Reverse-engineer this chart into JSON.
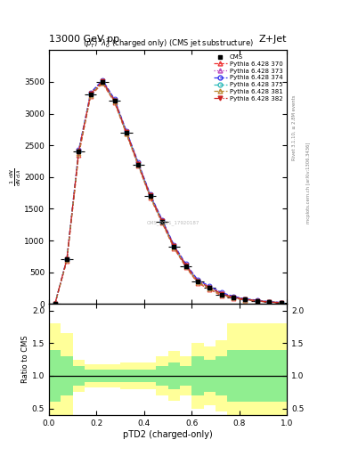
{
  "title_top": "13000 GeV pp",
  "title_right": "Z+Jet",
  "plot_title": "$(p_T^P)^2\\lambda_0^2$ (charged only) (CMS jet substructure)",
  "xlabel": "pTD2 (charged-only)",
  "watermark": "CMS_2021_17920187",
  "rivet_label": "Rivet 3.1.10, ≥ 2.8M events",
  "arxiv_label": "mcplots.cern.ch [arXiv:1306.3436]",
  "cms_label": "CMS",
  "x_bins": [
    0.0,
    0.05,
    0.1,
    0.15,
    0.2,
    0.25,
    0.3,
    0.35,
    0.4,
    0.45,
    0.5,
    0.55,
    0.6,
    0.65,
    0.7,
    0.75,
    0.8,
    0.85,
    0.9,
    0.95,
    1.0
  ],
  "cms_y": [
    0.0,
    700,
    2400,
    3300,
    3500,
    3200,
    2700,
    2200,
    1700,
    1300,
    900,
    600,
    350,
    250,
    150,
    100,
    70,
    50,
    30,
    20
  ],
  "pythia_lines": [
    {
      "label": "Pythia 6.428 370",
      "color": "#EE3333",
      "linestyle": "--",
      "marker": "^",
      "markerfacecolor": "none",
      "y": [
        0.0,
        680,
        2350,
        3280,
        3480,
        3180,
        2680,
        2180,
        1680,
        1280,
        880,
        580,
        330,
        230,
        130,
        90,
        60,
        45,
        28,
        18
      ]
    },
    {
      "label": "Pythia 6.428 373",
      "color": "#BB44BB",
      "linestyle": ":",
      "marker": "^",
      "markerfacecolor": "none",
      "y": [
        0.0,
        700,
        2420,
        3320,
        3520,
        3220,
        2720,
        2220,
        1720,
        1320,
        920,
        620,
        370,
        270,
        170,
        110,
        75,
        55,
        33,
        22
      ]
    },
    {
      "label": "Pythia 6.428 374",
      "color": "#3333EE",
      "linestyle": "--",
      "marker": "o",
      "markerfacecolor": "none",
      "y": [
        0.0,
        710,
        2430,
        3330,
        3530,
        3230,
        2730,
        2230,
        1730,
        1330,
        930,
        630,
        380,
        280,
        180,
        120,
        80,
        60,
        36,
        24
      ]
    },
    {
      "label": "Pythia 6.428 375",
      "color": "#33BBBB",
      "linestyle": "--",
      "marker": "o",
      "markerfacecolor": "none",
      "y": [
        0.0,
        700,
        2400,
        3300,
        3500,
        3200,
        2700,
        2200,
        1700,
        1300,
        900,
        600,
        350,
        250,
        150,
        100,
        70,
        50,
        30,
        20
      ]
    },
    {
      "label": "Pythia 6.428 381",
      "color": "#BB8833",
      "linestyle": "--",
      "marker": "^",
      "markerfacecolor": "none",
      "y": [
        0.0,
        690,
        2380,
        3290,
        3490,
        3190,
        2690,
        2190,
        1690,
        1290,
        890,
        590,
        340,
        240,
        140,
        95,
        65,
        48,
        29,
        19
      ]
    },
    {
      "label": "Pythia 6.428 382",
      "color": "#CC2222",
      "linestyle": "-.",
      "marker": "v",
      "markerfacecolor": "#CC2222",
      "y": [
        0.0,
        705,
        2410,
        3310,
        3510,
        3210,
        2710,
        2210,
        1710,
        1310,
        910,
        610,
        360,
        260,
        160,
        105,
        72,
        52,
        31,
        21
      ]
    }
  ],
  "ratio_green_upper": [
    1.4,
    1.3,
    1.15,
    1.1,
    1.1,
    1.1,
    1.1,
    1.1,
    1.1,
    1.15,
    1.2,
    1.15,
    1.3,
    1.25,
    1.3,
    1.4,
    1.4,
    1.4,
    1.4,
    1.4
  ],
  "ratio_green_lower": [
    0.6,
    0.7,
    0.85,
    0.9,
    0.9,
    0.9,
    0.9,
    0.9,
    0.9,
    0.85,
    0.8,
    0.85,
    0.7,
    0.75,
    0.7,
    0.6,
    0.6,
    0.6,
    0.6,
    0.6
  ],
  "ratio_yellow_upper": [
    1.8,
    1.65,
    1.25,
    1.18,
    1.18,
    1.18,
    1.2,
    1.2,
    1.2,
    1.3,
    1.38,
    1.3,
    1.5,
    1.45,
    1.55,
    1.8,
    1.8,
    1.8,
    1.8,
    1.8
  ],
  "ratio_yellow_lower": [
    0.2,
    0.35,
    0.75,
    0.82,
    0.82,
    0.82,
    0.8,
    0.8,
    0.8,
    0.7,
    0.62,
    0.7,
    0.5,
    0.55,
    0.45,
    0.2,
    0.2,
    0.2,
    0.2,
    0.2
  ],
  "ylim_main": [
    0,
    4000
  ],
  "ylim_ratio": [
    0.4,
    2.1
  ],
  "xlim": [
    0.0,
    1.0
  ],
  "yticks_main": [
    0,
    500,
    1000,
    1500,
    2000,
    2500,
    3000,
    3500
  ],
  "background_color": "#ffffff",
  "green_color": "#90EE90",
  "yellow_color": "#FFFF99"
}
